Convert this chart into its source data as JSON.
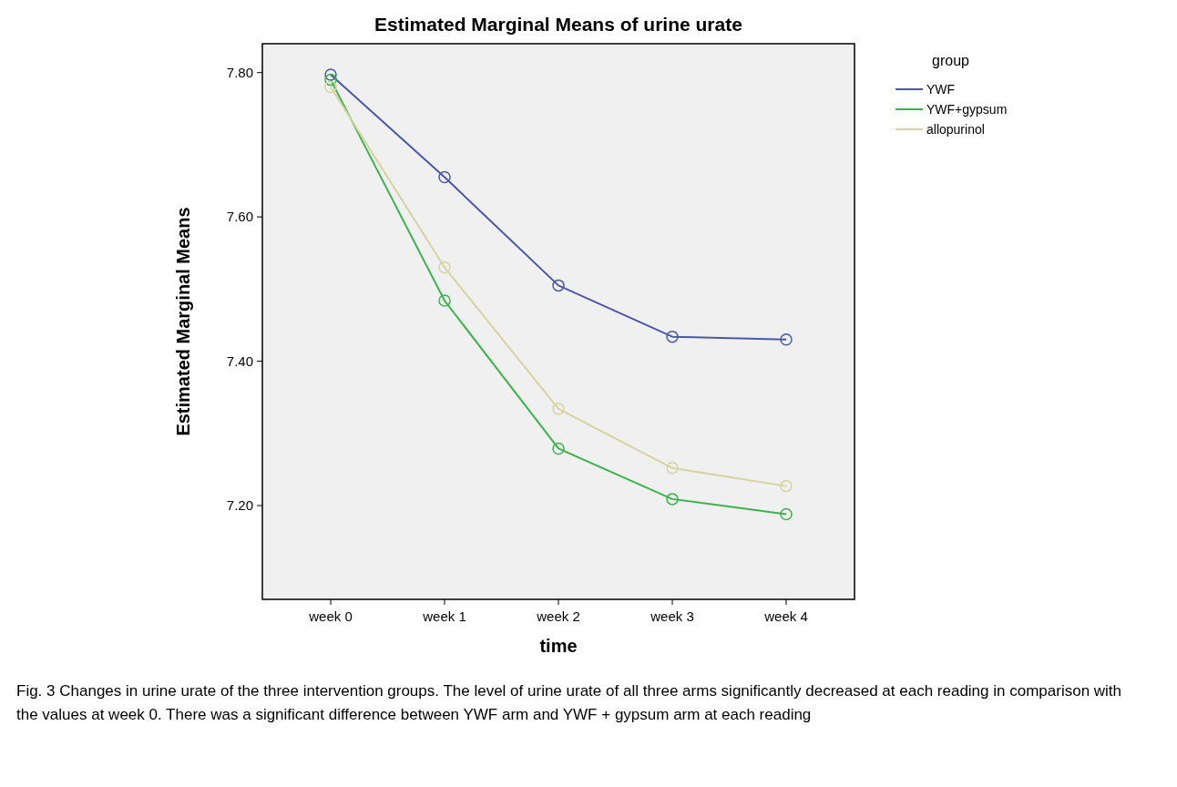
{
  "chart_data": {
    "type": "line",
    "title": "Estimated Marginal Means of urine urate",
    "xlabel": "time",
    "ylabel": "Estimated Marginal Means",
    "legend_title": "group",
    "categories": [
      "week 0",
      "week 1",
      "week 2",
      "week 3",
      "week 4"
    ],
    "series": [
      {
        "name": "YWF",
        "color": "#4a58a8",
        "values": [
          7.797,
          7.655,
          7.505,
          7.434,
          7.43
        ]
      },
      {
        "name": "YWF+gypsum",
        "color": "#3cb44b",
        "values": [
          7.79,
          7.484,
          7.279,
          7.209,
          7.188
        ]
      },
      {
        "name": "allopurinol",
        "color": "#d6d3a0",
        "values": [
          7.78,
          7.53,
          7.334,
          7.252,
          7.227
        ]
      }
    ],
    "ylim": [
      7.07,
      7.84
    ],
    "yticks": [
      {
        "value": 7.2,
        "label": "7.20"
      },
      {
        "value": 7.4,
        "label": "7.40"
      },
      {
        "value": 7.6,
        "label": "7.60"
      },
      {
        "value": 7.8,
        "label": "7.80"
      }
    ],
    "marker": "circle",
    "legend": "top right",
    "annotations": [
      "Fig. 3 Changes in urine urate of the three intervention groups. The level of urine urate of all three arms significantly decreased at each reading in comparison with the values at week 0. There was a significant difference between YWF arm and YWF + gypsum arm at each reading"
    ]
  }
}
